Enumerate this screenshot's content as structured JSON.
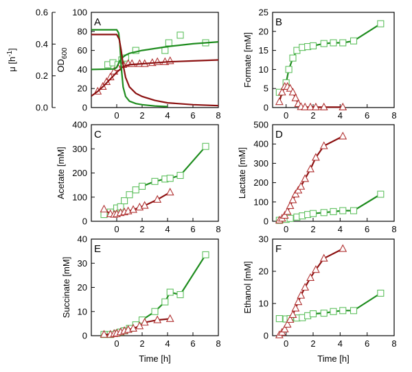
{
  "colors": {
    "green": "#1e8c1e",
    "red": "#8b1010",
    "marker_green": "#5cbf5c",
    "marker_red": "#b03030"
  },
  "chart_data": [
    {
      "id": "A",
      "type": "line",
      "panel_label": "A",
      "xlabel": "",
      "ylabel": "OD",
      "ylabel_sub": "600",
      "left_ylabel": "μ [h",
      "left_ylabel_sup": "-1",
      "left_ylabel_tail": "]",
      "xlim": [
        -2,
        8
      ],
      "ylim": [
        0,
        100
      ],
      "left_ylim": [
        0,
        0.6
      ],
      "xticks": [
        "0",
        "2",
        "4",
        "6",
        "8"
      ],
      "yticks": [
        "0",
        "20",
        "40",
        "60",
        "80",
        "100"
      ],
      "left_yticks": [
        "0.0",
        "0.2",
        "0.4",
        "0.6"
      ],
      "series": [
        {
          "name": "OD600 condition 1 (squares)",
          "marker": "square",
          "color": "green",
          "x": [
            -0.7,
            -0.3,
            0.1,
            0.4,
            0.7,
            1.5,
            3.8,
            4.1,
            5.0,
            7.0
          ],
          "y": [
            45,
            47,
            45,
            50,
            52,
            60,
            60,
            68,
            76,
            68
          ]
        },
        {
          "name": "OD600 condition 2 (triangles)",
          "marker": "triangle",
          "color": "red",
          "x": [
            -1.5,
            -1.1,
            -0.8,
            -0.5,
            -0.2,
            0.1,
            0.5,
            0.9,
            1.2,
            1.8,
            2.2,
            2.8,
            3.2,
            3.8,
            4.2
          ],
          "y": [
            17,
            22,
            27,
            32,
            38,
            42,
            45,
            46,
            46,
            46,
            46,
            47,
            48,
            48,
            49
          ]
        },
        {
          "name": "OD600 fit condition 1",
          "marker": "none",
          "color": "green",
          "x": [
            -2.0,
            -0.2,
            0.0,
            0.2,
            0.4,
            0.7,
            1.0,
            2.0,
            4.0,
            6.0,
            8.0
          ],
          "y": [
            40,
            40.5,
            42,
            48,
            52,
            55,
            57,
            60,
            64,
            67,
            69
          ]
        },
        {
          "name": "OD600 fit condition 2",
          "marker": "none",
          "color": "red",
          "x": [
            -2.0,
            -1.5,
            -1.0,
            -0.5,
            0.0,
            0.5,
            1.0,
            2.0,
            3.0,
            4.0,
            6.0,
            8.0
          ],
          "y": [
            12,
            17,
            23,
            30,
            37,
            43,
            45,
            46,
            47,
            48,
            49,
            50
          ]
        },
        {
          "name": "Growth rate μ condition 1",
          "marker": "none",
          "color": "green",
          "x": [
            -2.0,
            0.0,
            0.15,
            0.25,
            0.35,
            0.5,
            0.7,
            1.0,
            1.5,
            2.0,
            3.0,
            4.0
          ],
          "y": [
            0.49,
            0.49,
            0.47,
            0.4,
            0.26,
            0.13,
            0.07,
            0.04,
            0.025,
            0.018,
            0.01,
            0.006
          ]
        },
        {
          "name": "Growth rate μ condition 2",
          "marker": "none",
          "color": "red",
          "x": [
            -2.0,
            0.0,
            0.2,
            0.35,
            0.5,
            0.7,
            1.0,
            1.5,
            2.0,
            3.0,
            4.0,
            6.0,
            8.0
          ],
          "y": [
            0.46,
            0.46,
            0.43,
            0.36,
            0.27,
            0.19,
            0.13,
            0.09,
            0.07,
            0.045,
            0.03,
            0.018,
            0.012
          ]
        }
      ]
    },
    {
      "id": "B",
      "type": "line",
      "panel_label": "B",
      "xlabel": "",
      "ylabel": "Formate [mM]",
      "xlim": [
        -1,
        8
      ],
      "ylim": [
        0,
        25
      ],
      "xticks": [
        "0",
        "2",
        "4",
        "6",
        "8"
      ],
      "yticks": [
        "0",
        "5",
        "10",
        "15",
        "20",
        "25"
      ],
      "series": [
        {
          "name": "Formate condition 1",
          "marker": "square",
          "color": "green",
          "x": [
            -0.5,
            0.0,
            0.2,
            0.5,
            0.8,
            1.2,
            1.6,
            2.0,
            2.8,
            3.5,
            4.2,
            5.0,
            7.0
          ],
          "y": [
            4.0,
            6.5,
            10.0,
            13.0,
            15.0,
            15.8,
            16.0,
            16.2,
            16.8,
            17.0,
            17.0,
            17.5,
            22.0
          ]
        },
        {
          "name": "Formate condition 2",
          "marker": "triangle",
          "color": "red",
          "x": [
            -0.5,
            -0.3,
            -0.1,
            0.1,
            0.3,
            0.5,
            0.7,
            0.9,
            1.1,
            1.4,
            1.8,
            2.2,
            2.8,
            4.2
          ],
          "y": [
            1.5,
            4.0,
            5.5,
            5.5,
            5.0,
            4.0,
            2.5,
            1.0,
            0.2,
            0.1,
            0.1,
            0.1,
            0.1,
            0.1
          ]
        }
      ]
    },
    {
      "id": "C",
      "type": "line",
      "panel_label": "C",
      "xlabel": "",
      "ylabel": "Acetate [mM]",
      "xlim": [
        -2,
        8
      ],
      "ylim": [
        0,
        400
      ],
      "xticks": [
        "0",
        "2",
        "4",
        "6",
        "8"
      ],
      "yticks": [
        "0",
        "100",
        "200",
        "300",
        "400"
      ],
      "series": [
        {
          "name": "Acetate condition 1",
          "marker": "square",
          "color": "green",
          "x": [
            -1.0,
            -0.5,
            0.0,
            0.3,
            0.6,
            1.0,
            1.5,
            2.0,
            3.0,
            3.8,
            4.2,
            5.0,
            7.0
          ],
          "y": [
            28,
            38,
            55,
            60,
            85,
            110,
            130,
            145,
            165,
            175,
            178,
            190,
            310
          ]
        },
        {
          "name": "Acetate condition 2",
          "marker": "triangle",
          "color": "red",
          "x": [
            -1.0,
            -0.5,
            -0.2,
            0.0,
            0.3,
            0.6,
            0.9,
            1.3,
            1.8,
            2.2,
            3.2,
            4.2
          ],
          "y": [
            50,
            30,
            28,
            30,
            35,
            38,
            42,
            48,
            58,
            65,
            90,
            120
          ]
        }
      ]
    },
    {
      "id": "D",
      "type": "line",
      "panel_label": "D",
      "xlabel": "",
      "ylabel": "Lactate [mM]",
      "xlim": [
        -1,
        8
      ],
      "ylim": [
        0,
        500
      ],
      "xticks": [
        "0",
        "2",
        "4",
        "6",
        "8"
      ],
      "yticks": [
        "0",
        "100",
        "200",
        "300",
        "400",
        "500"
      ],
      "series": [
        {
          "name": "Lactate condition 1",
          "marker": "square",
          "color": "green",
          "x": [
            -0.5,
            0.0,
            0.3,
            0.8,
            1.2,
            1.6,
            2.0,
            2.8,
            3.5,
            4.2,
            5.0,
            7.0
          ],
          "y": [
            5,
            10,
            15,
            22,
            28,
            35,
            40,
            45,
            50,
            55,
            55,
            140
          ]
        },
        {
          "name": "Lactate condition 2",
          "marker": "triangle",
          "color": "red",
          "x": [
            -0.5,
            -0.3,
            -0.1,
            0.1,
            0.3,
            0.5,
            0.7,
            0.9,
            1.1,
            1.4,
            1.8,
            2.2,
            2.8,
            4.2
          ],
          "y": [
            5,
            15,
            30,
            50,
            80,
            110,
            140,
            160,
            180,
            220,
            270,
            330,
            390,
            440
          ]
        }
      ]
    },
    {
      "id": "E",
      "type": "line",
      "panel_label": "E",
      "xlabel": "Time [h]",
      "ylabel": "Succinate [mM]",
      "xlim": [
        -2,
        8
      ],
      "ylim": [
        0,
        40
      ],
      "xticks": [
        "0",
        "2",
        "4",
        "6",
        "8"
      ],
      "yticks": [
        "0",
        "10",
        "20",
        "30",
        "40"
      ],
      "series": [
        {
          "name": "Succinate condition 1",
          "marker": "square",
          "color": "green",
          "x": [
            -1.0,
            -0.5,
            0.0,
            0.3,
            0.6,
            1.0,
            1.5,
            2.0,
            3.0,
            3.8,
            4.2,
            5.0,
            7.0
          ],
          "y": [
            0.5,
            0.5,
            1.0,
            1.5,
            2.0,
            3.0,
            4.5,
            6.5,
            10.0,
            14.0,
            18.0,
            17.0,
            33.5
          ]
        },
        {
          "name": "Succinate condition 2",
          "marker": "triangle",
          "color": "red",
          "x": [
            -1.0,
            -0.5,
            -0.2,
            0.0,
            0.3,
            0.6,
            0.9,
            1.3,
            1.8,
            2.2,
            3.2,
            4.2
          ],
          "y": [
            0.5,
            0.5,
            0.8,
            1.0,
            1.5,
            2.0,
            2.5,
            3.0,
            4.0,
            5.5,
            6.5,
            7.0
          ]
        }
      ]
    },
    {
      "id": "F",
      "type": "line",
      "panel_label": "F",
      "xlabel": "Time [h]",
      "ylabel": "Ethanol [mM]",
      "xlim": [
        -1,
        8
      ],
      "ylim": [
        0,
        30
      ],
      "xticks": [
        "0",
        "2",
        "4",
        "6",
        "8"
      ],
      "yticks": [
        "0",
        "10",
        "20",
        "30"
      ],
      "series": [
        {
          "name": "Ethanol condition 1",
          "marker": "square",
          "color": "green",
          "x": [
            -0.5,
            0.0,
            0.3,
            0.8,
            1.2,
            1.6,
            2.0,
            2.8,
            3.5,
            4.2,
            5.0,
            7.0
          ],
          "y": [
            5.3,
            5.2,
            5.3,
            5.5,
            5.6,
            6.2,
            6.8,
            7.0,
            7.5,
            7.8,
            7.8,
            13.2
          ]
        },
        {
          "name": "Ethanol condition 2",
          "marker": "triangle",
          "color": "red",
          "x": [
            -0.5,
            -0.3,
            -0.1,
            0.1,
            0.3,
            0.5,
            0.7,
            0.9,
            1.1,
            1.4,
            1.8,
            2.2,
            2.8,
            4.2
          ],
          "y": [
            0.2,
            1.0,
            2.0,
            3.5,
            5.0,
            6.5,
            8.5,
            10.5,
            12.5,
            15.0,
            18.0,
            20.5,
            24.0,
            27.0
          ]
        }
      ]
    }
  ]
}
